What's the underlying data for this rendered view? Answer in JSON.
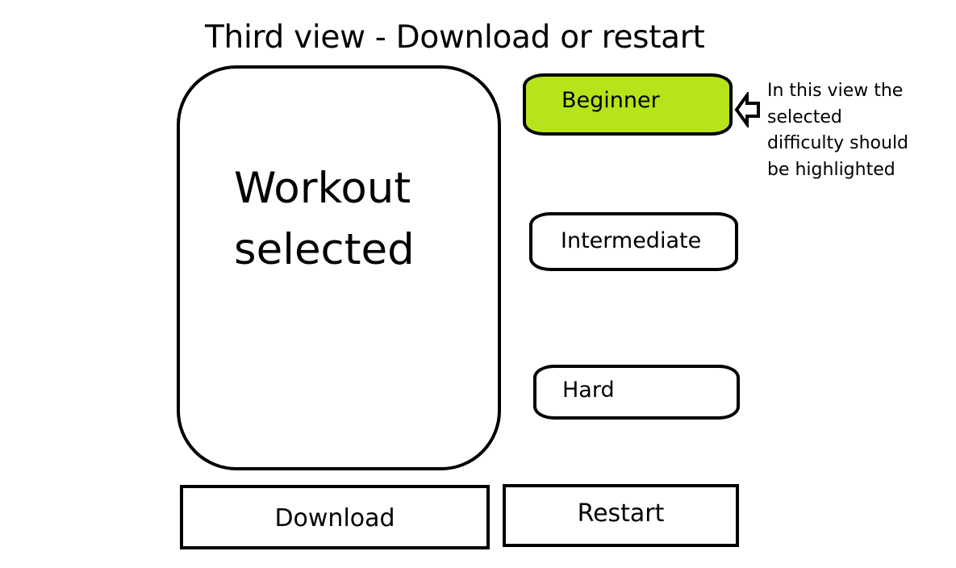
{
  "title": "Third view - Download or restart",
  "workout_panel": {
    "label_line1": "Workout",
    "label_line2": "selected"
  },
  "difficulty": {
    "highlight_color": "#b5e41a",
    "selected": "Beginner",
    "options": [
      {
        "label": "Beginner",
        "selected": true
      },
      {
        "label": "Intermediate",
        "selected": false
      },
      {
        "label": "Hard",
        "selected": false
      }
    ]
  },
  "actions": {
    "download_label": "Download",
    "restart_label": "Restart"
  },
  "annotation": {
    "icon": "arrow-left-icon",
    "lines": [
      "In this view the",
      "selected",
      "difficulty should",
      "be highlighted"
    ]
  }
}
